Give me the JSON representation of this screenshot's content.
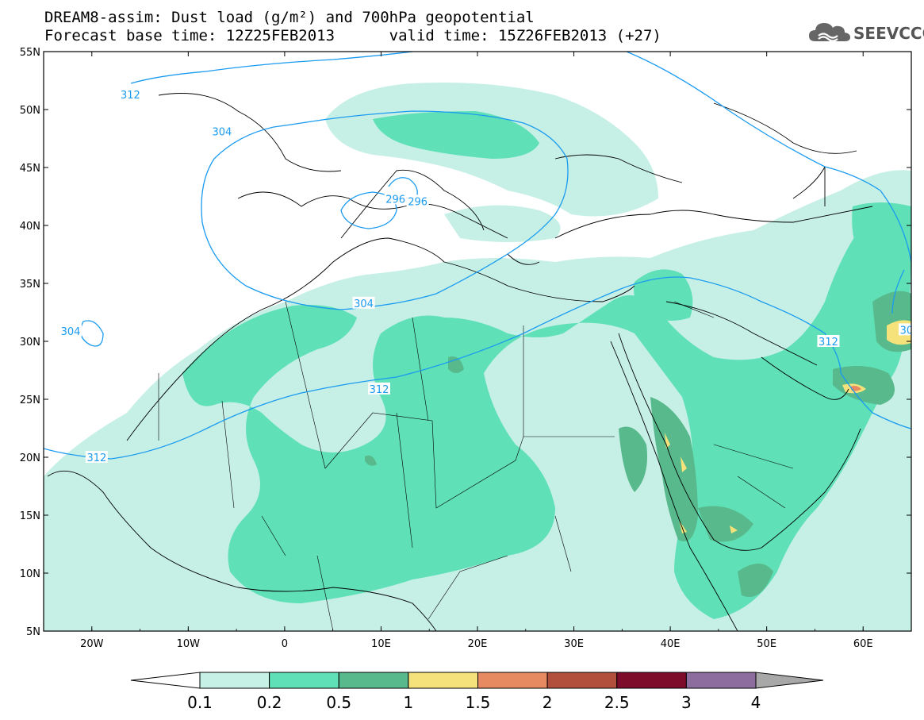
{
  "title": {
    "line1": "DREAM8-assim: Dust load (g/m²) and 700hPa geopotential",
    "line2": "Forecast base time: 12Z25FEB2013      valid time: 15Z26FEB2013 (+27)"
  },
  "logo": {
    "text": "SEEVCCC",
    "icon": "cloud-icon"
  },
  "axes": {
    "lat_labels": [
      "55N",
      "50N",
      "45N",
      "40N",
      "35N",
      "30N",
      "25N",
      "20N",
      "15N",
      "10N",
      "5N"
    ],
    "lon_labels": [
      "20W",
      "10W",
      "0",
      "10E",
      "20E",
      "30E",
      "40E",
      "50E",
      "60E"
    ]
  },
  "contour_labels": [
    {
      "text": "312",
      "lon": -16,
      "lat": 51.3
    },
    {
      "text": "304",
      "lon": -6.5,
      "lat": 48.1
    },
    {
      "text": "296",
      "lon": 11.5,
      "lat": 42.3
    },
    {
      "text": "296",
      "lon": 13.8,
      "lat": 42.1
    },
    {
      "text": "304",
      "lon": -22.2,
      "lat": 30.9
    },
    {
      "text": "304",
      "lon": 8.2,
      "lat": 33.3
    },
    {
      "text": "312",
      "lon": 9.8,
      "lat": 25.9
    },
    {
      "text": "312",
      "lon": -19.5,
      "lat": 20.0
    },
    {
      "text": "312",
      "lon": 56.4,
      "lat": 30.0
    },
    {
      "text": "30",
      "lon": 64.5,
      "lat": 31.0
    }
  ],
  "colorbar": {
    "labels": [
      "0.1",
      "0.2",
      "0.5",
      "1",
      "1.5",
      "2",
      "2.5",
      "3",
      "4"
    ],
    "colors": [
      "#c6f0e6",
      "#5fe0b6",
      "#57b98c",
      "#f5e27b",
      "#e88a61",
      "#b14f3c",
      "#7d0b2a",
      "#8c6d9e"
    ],
    "overflow_color": "#a8a8a8"
  }
}
